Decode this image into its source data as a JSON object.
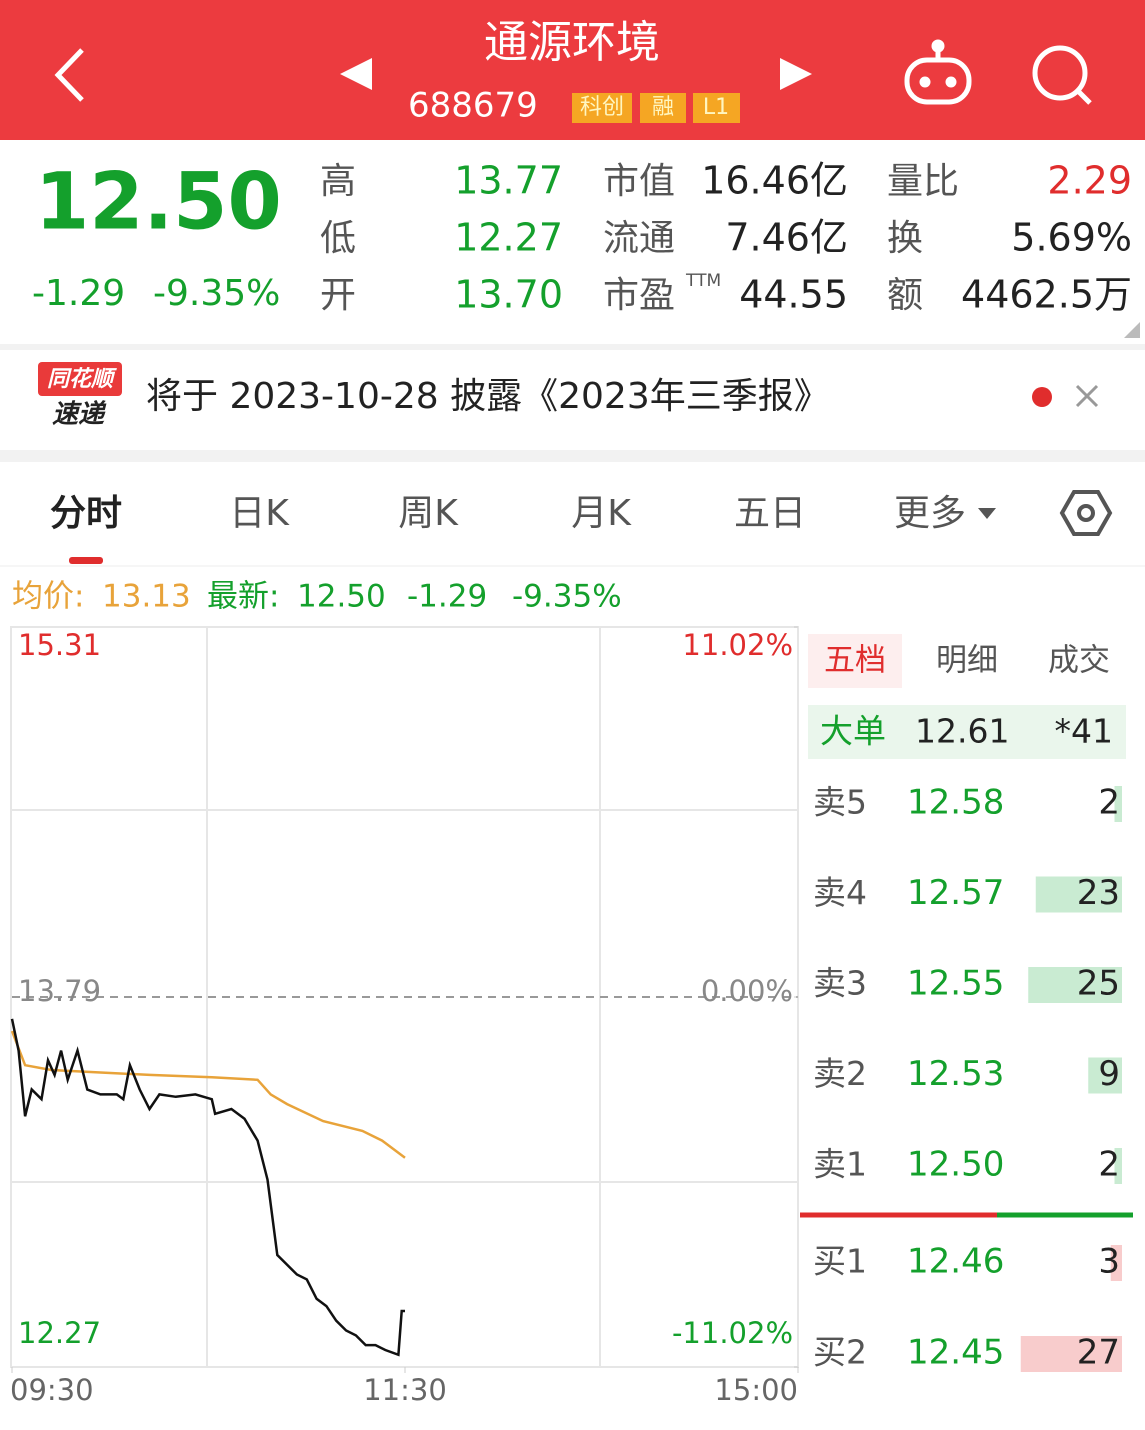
{
  "header": {
    "title": "通源环境",
    "code": "688679",
    "tags": [
      "科创",
      "融",
      "L1"
    ]
  },
  "quote": {
    "price": "12.50",
    "change": "-1.29",
    "change_pct": "-9.35%",
    "stats": [
      [
        {
          "label": "高",
          "value": "13.77"
        },
        {
          "label": "市值",
          "value": "16.46亿"
        },
        {
          "label": "量比",
          "value": "2.29"
        }
      ],
      [
        {
          "label": "低",
          "value": "12.27"
        },
        {
          "label": "流通",
          "value": "7.46亿"
        },
        {
          "label": "换",
          "value": "5.69%"
        }
      ],
      [
        {
          "label": "开",
          "value": "13.70"
        },
        {
          "label": "市盈",
          "sup": "TTM",
          "value": "44.55"
        },
        {
          "label": "额",
          "value": "4462.5万"
        }
      ]
    ]
  },
  "notice": {
    "logo_top": "同花顺",
    "logo_bottom": "速递",
    "text": "将于 2023-10-28 披露《2023年三季报》"
  },
  "tabs": [
    "分时",
    "日K",
    "周K",
    "月K",
    "五日",
    "更多"
  ],
  "info": {
    "avg_label": "均价:",
    "avg": "13.13",
    "last_label": "最新:",
    "last": "12.50",
    "change": "-1.29",
    "change_pct": "-9.35%"
  },
  "chart_data": {
    "type": "line",
    "xlim": [
      0,
      240
    ],
    "ylim": [
      12.27,
      15.31
    ],
    "y2lim": [
      -11.02,
      11.02
    ],
    "xticks": [
      {
        "value": 0,
        "label": "09:30"
      },
      {
        "value": 120,
        "label": "11:30"
      },
      {
        "value": 240,
        "label": "15:00"
      }
    ],
    "yticks": [
      15.31,
      13.79,
      12.27
    ],
    "y2ticks": [
      {
        "value": 11.02,
        "label": "11.02%"
      },
      {
        "value": 0,
        "label": "0.00%"
      },
      {
        "value": -11.02,
        "label": "-11.02%"
      }
    ],
    "series": [
      {
        "color": "#e8a33a",
        "x": [
          0,
          4,
          12,
          27,
          42,
          61,
          75,
          79,
          84,
          95,
          107,
          113,
          120
        ],
        "values": [
          13.65,
          13.51,
          13.49,
          13.48,
          13.47,
          13.46,
          13.45,
          13.39,
          13.35,
          13.28,
          13.24,
          13.2,
          13.13
        ]
      },
      {
        "color": "#111111",
        "x": [
          0,
          2,
          4,
          6,
          9,
          11,
          13,
          15,
          17,
          20,
          23,
          27,
          32,
          34,
          36,
          39,
          42,
          45,
          50,
          56,
          61,
          62,
          67,
          71,
          75,
          78,
          81,
          84,
          87,
          90,
          93,
          96,
          99,
          102,
          105,
          108,
          111,
          114,
          118,
          119,
          120
        ],
        "values": [
          13.7,
          13.57,
          13.3,
          13.41,
          13.37,
          13.53,
          13.47,
          13.57,
          13.45,
          13.57,
          13.41,
          13.39,
          13.39,
          13.37,
          13.51,
          13.41,
          13.33,
          13.39,
          13.38,
          13.39,
          13.37,
          13.31,
          13.33,
          13.29,
          13.2,
          13.04,
          12.73,
          12.69,
          12.65,
          12.63,
          12.55,
          12.52,
          12.46,
          12.42,
          12.4,
          12.36,
          12.36,
          12.34,
          12.32,
          12.5,
          12.5
        ]
      }
    ]
  },
  "orderbook": {
    "tabs": [
      "五档",
      "明细",
      "成交"
    ],
    "big": {
      "label": "大单",
      "price": "12.61",
      "vol": "*41"
    },
    "asks": [
      {
        "label": "卖5",
        "price": "12.58",
        "vol": 2
      },
      {
        "label": "卖4",
        "price": "12.57",
        "vol": 23
      },
      {
        "label": "卖3",
        "price": "12.55",
        "vol": 25
      },
      {
        "label": "卖2",
        "price": "12.53",
        "vol": 9
      },
      {
        "label": "卖1",
        "price": "12.50",
        "vol": 2
      }
    ],
    "bids": [
      {
        "label": "买1",
        "price": "12.46",
        "vol": 3
      },
      {
        "label": "买2",
        "price": "12.45",
        "vol": 27
      }
    ]
  }
}
